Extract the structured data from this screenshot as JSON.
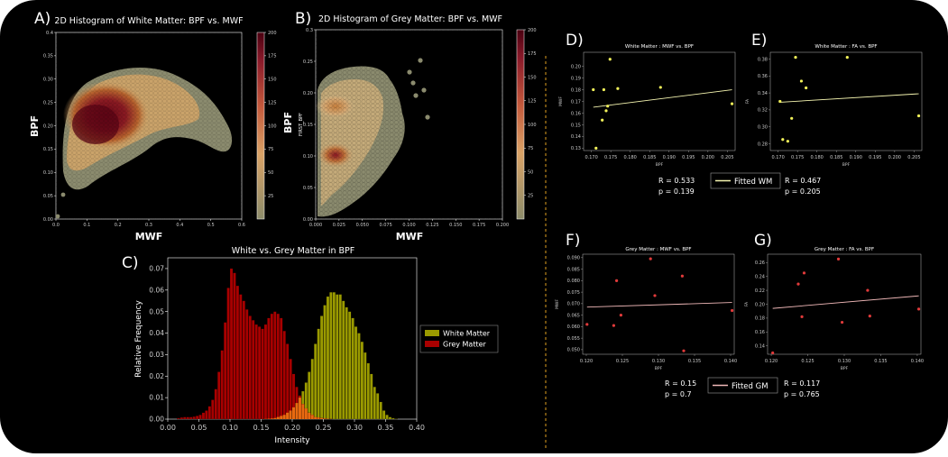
{
  "panels": {
    "A": {
      "letter": "A)",
      "title": "2D Histogram of White Matter: BPF vs. MWF",
      "xlabel": "MWF",
      "ylabel": "BPF",
      "xticks": [
        "0.0",
        "0.1",
        "0.2",
        "0.3",
        "0.4",
        "0.5",
        "0.6"
      ],
      "yticks": [
        "0.00",
        "0.05",
        "0.10",
        "0.15",
        "0.20",
        "0.25",
        "0.30",
        "0.35",
        "0.4"
      ],
      "cbar_ticks": [
        "25",
        "50",
        "75",
        "100",
        "125",
        "150",
        "175",
        "200"
      ]
    },
    "B": {
      "letter": "B)",
      "title": "2D Histogram of Grey Matter: BPF vs. MWF",
      "xlabel": "MWF",
      "ylabel": "BPF",
      "inner_ylabel": "FIRST_BPF",
      "xticks": [
        "0.000",
        "0.025",
        "0.050",
        "0.075",
        "0.100",
        "0.125",
        "0.150",
        "0.175",
        "0.200"
      ],
      "yticks": [
        "0.00",
        "0.05",
        "0.10",
        "0.15",
        "0.20",
        "0.25",
        "0.3"
      ],
      "cbar_ticks": [
        "25",
        "50",
        "75",
        "100",
        "125",
        "150",
        "175",
        "200"
      ]
    },
    "C": {
      "letter": "C)"
    },
    "D": {
      "letter": "D)"
    },
    "E": {
      "letter": "E)"
    },
    "F": {
      "letter": "F)"
    },
    "G": {
      "letter": "G)"
    }
  },
  "stats": {
    "D": {
      "r": "R = 0.533",
      "p": "p = 0.139"
    },
    "E": {
      "r": "R = 0.467",
      "p": "p = 0.205"
    },
    "F": {
      "r": "R = 0.15",
      "p": "p = 0.7"
    },
    "G": {
      "r": "R = 0.117",
      "p": "p = 0.765"
    }
  },
  "legends": {
    "wm_fit": "Fitted WM",
    "gm_fit": "Fitted GM"
  },
  "colors": {
    "background": "#000000",
    "white_matter": "#9a9a00",
    "grey_matter": "#a80000",
    "overlap": "#e86a10",
    "wm_points": "#f2f25a",
    "gm_points": "#e03a3a",
    "wm_fit_line": "#f5f5b0",
    "gm_fit_line": "#f0b8b8",
    "divider": "#e0a020"
  },
  "chart_data": [
    {
      "id": "A",
      "type": "heatmap",
      "title": "2D Histogram of White Matter: BPF vs. MWF",
      "xlabel": "MWF",
      "ylabel": "BPF",
      "xlim": [
        0,
        0.6
      ],
      "ylim": [
        0,
        0.4
      ],
      "xticks": [
        0,
        0.1,
        0.2,
        0.3,
        0.4,
        0.5,
        0.6
      ],
      "yticks": [
        0,
        0.05,
        0.1,
        0.15,
        0.2,
        0.25,
        0.3,
        0.35,
        0.4
      ],
      "colorbar": {
        "range": [
          0,
          200
        ],
        "ticks": [
          25,
          50,
          75,
          100,
          125,
          150,
          175,
          200
        ]
      },
      "density_peak": [
        0.12,
        0.2
      ],
      "outliers": [
        [
          0.01,
          0.0
        ],
        [
          0.03,
          0.05
        ]
      ]
    },
    {
      "id": "B",
      "type": "heatmap",
      "title": "2D Histogram of Grey Matter: BPF vs. MWF",
      "xlabel": "MWF",
      "ylabel": "BPF",
      "xlim": [
        0,
        0.2
      ],
      "ylim": [
        0,
        0.3
      ],
      "xticks": [
        0,
        0.025,
        0.05,
        0.075,
        0.1,
        0.125,
        0.15,
        0.175,
        0.2
      ],
      "yticks": [
        0,
        0.05,
        0.1,
        0.15,
        0.2,
        0.25,
        0.3
      ],
      "colorbar": {
        "range": [
          0,
          200
        ],
        "ticks": [
          25,
          50,
          75,
          100,
          125,
          150,
          175,
          200
        ]
      },
      "density_peaks": [
        [
          0.012,
          0.09
        ],
        [
          0.02,
          0.18
        ]
      ],
      "outliers": [
        [
          0.11,
          0.26
        ],
        [
          0.095,
          0.24
        ],
        [
          0.1,
          0.22
        ],
        [
          0.12,
          0.21
        ],
        [
          0.115,
          0.2
        ],
        [
          0.125,
          0.16
        ]
      ]
    },
    {
      "id": "C",
      "type": "bar",
      "title": "White vs. Grey Matter in BPF",
      "xlabel": "Intensity",
      "ylabel": "Relative Frequency",
      "xlim": [
        0,
        0.4
      ],
      "ylim": [
        0,
        0.075
      ],
      "xticks": [
        "0.00",
        "0.05",
        "0.10",
        "0.15",
        "0.20",
        "0.25",
        "0.30",
        "0.35",
        "0.40"
      ],
      "yticks": [
        "0.00",
        "0.01",
        "0.02",
        "0.03",
        "0.04",
        "0.05",
        "0.06",
        "0.07"
      ],
      "bin_start": 0.0,
      "bin_width": 0.005,
      "series": [
        {
          "name": "White Matter",
          "values": [
            0,
            0,
            0,
            0,
            0,
            0,
            0,
            0,
            0,
            0,
            0,
            0,
            0,
            0,
            0,
            0,
            0,
            0,
            0,
            0,
            0,
            0,
            0,
            0,
            0,
            0,
            0,
            0,
            0,
            0,
            0,
            0.0001,
            0.0002,
            0.0003,
            0.0005,
            0.001,
            0.0015,
            0.002,
            0.003,
            0.004,
            0.0055,
            0.0075,
            0.01,
            0.013,
            0.017,
            0.022,
            0.028,
            0.035,
            0.042,
            0.048,
            0.053,
            0.057,
            0.059,
            0.059,
            0.058,
            0.058,
            0.055,
            0.052,
            0.05,
            0.047,
            0.043,
            0.04,
            0.036,
            0.031,
            0.026,
            0.021,
            0.015,
            0.012,
            0.008,
            0.004,
            0.002,
            0.001,
            0.0005,
            0.0002,
            0,
            0,
            0,
            0,
            0,
            0
          ]
        },
        {
          "name": "Grey Matter",
          "values": [
            0,
            0,
            0,
            0.0005,
            0.0008,
            0.001,
            0.001,
            0.001,
            0.0012,
            0.0015,
            0.002,
            0.003,
            0.004,
            0.006,
            0.009,
            0.014,
            0.022,
            0.032,
            0.045,
            0.061,
            0.07,
            0.068,
            0.062,
            0.058,
            0.055,
            0.051,
            0.048,
            0.046,
            0.044,
            0.043,
            0.042,
            0.044,
            0.047,
            0.049,
            0.05,
            0.049,
            0.047,
            0.041,
            0.035,
            0.028,
            0.021,
            0.015,
            0.011,
            0.007,
            0.005,
            0.003,
            0.002,
            0.001,
            0.0008,
            0.0005,
            0.0003,
            0.0002,
            0.0001,
            0,
            0,
            0,
            0,
            0,
            0,
            0,
            0,
            0,
            0,
            0,
            0,
            0,
            0,
            0,
            0,
            0,
            0,
            0,
            0,
            0,
            0,
            0,
            0,
            0,
            0,
            0
          ]
        }
      ],
      "legend": [
        "White Matter",
        "Grey Matter"
      ],
      "legend_position": "right"
    },
    {
      "id": "D",
      "type": "scatter",
      "title": "White Matter : MWF vs. BPF",
      "xlabel": "BPF",
      "ylabel": "MWF",
      "xlim": [
        0.168,
        0.207
      ],
      "ylim": [
        0.128,
        0.212
      ],
      "xticks": [
        0.17,
        0.175,
        0.18,
        0.185,
        0.19,
        0.195,
        0.2,
        0.205
      ],
      "xticklabels": [
        "0.170",
        "0.175",
        "0.180",
        "0.185",
        "0.190",
        "0.195",
        "0.200",
        "0.205"
      ],
      "yticks": [
        0.13,
        0.14,
        0.15,
        0.16,
        0.17,
        0.18,
        0.19,
        0.2
      ],
      "yticklabels": [
        "0.13",
        "0.14",
        "0.15",
        "0.16",
        "0.17",
        "0.18",
        "0.19",
        "0.20"
      ],
      "points": [
        [
          0.1705,
          0.18
        ],
        [
          0.1712,
          0.13
        ],
        [
          0.1728,
          0.154
        ],
        [
          0.1732,
          0.18
        ],
        [
          0.1738,
          0.162
        ],
        [
          0.1742,
          0.166
        ],
        [
          0.1748,
          0.206
        ],
        [
          0.1768,
          0.181
        ],
        [
          0.1878,
          0.182
        ],
        [
          0.2062,
          0.168
        ]
      ],
      "fit": [
        [
          0.1705,
          0.165
        ],
        [
          0.2062,
          0.18
        ]
      ]
    },
    {
      "id": "E",
      "type": "scatter",
      "title": "White Matter : FA vs. BPF",
      "xlabel": "BPF",
      "ylabel": "FA",
      "xlim": [
        0.168,
        0.207
      ],
      "ylim": [
        0.272,
        0.388
      ],
      "xticks": [
        0.17,
        0.175,
        0.18,
        0.185,
        0.19,
        0.195,
        0.2,
        0.205
      ],
      "xticklabels": [
        "0.170",
        "0.175",
        "0.180",
        "0.185",
        "0.190",
        "0.195",
        "0.200",
        "0.205"
      ],
      "yticks": [
        0.28,
        0.3,
        0.32,
        0.34,
        0.36,
        0.38
      ],
      "yticklabels": [
        "0.28",
        "0.30",
        "0.32",
        "0.34",
        "0.36",
        "0.38"
      ],
      "points": [
        [
          0.1705,
          0.33
        ],
        [
          0.1712,
          0.285
        ],
        [
          0.1725,
          0.283
        ],
        [
          0.1735,
          0.31
        ],
        [
          0.1745,
          0.382
        ],
        [
          0.176,
          0.354
        ],
        [
          0.1772,
          0.346
        ],
        [
          0.1878,
          0.382
        ],
        [
          0.2062,
          0.313
        ]
      ],
      "fit": [
        [
          0.1705,
          0.329
        ],
        [
          0.2062,
          0.339
        ]
      ]
    },
    {
      "id": "F",
      "type": "scatter",
      "title": "Grey Matter : MWF vs. BPF",
      "xlabel": "BPF",
      "ylabel": "MWF",
      "xlim": [
        0.1195,
        0.1405
      ],
      "ylim": [
        0.048,
        0.0915
      ],
      "xticks": [
        0.12,
        0.125,
        0.13,
        0.135,
        0.14
      ],
      "xticklabels": [
        "0.120",
        "0.125",
        "0.130",
        "0.135",
        "0.140"
      ],
      "yticks": [
        0.05,
        0.055,
        0.06,
        0.065,
        0.07,
        0.075,
        0.08,
        0.085,
        0.09
      ],
      "yticklabels": [
        "0.050",
        "0.055",
        "0.060",
        "0.065",
        "0.070",
        "0.075",
        "0.080",
        "0.085",
        "0.090"
      ],
      "points": [
        [
          0.1201,
          0.061
        ],
        [
          0.1238,
          0.0605
        ],
        [
          0.1242,
          0.08
        ],
        [
          0.1248,
          0.065
        ],
        [
          0.1289,
          0.0895
        ],
        [
          0.1295,
          0.0735
        ],
        [
          0.1333,
          0.082
        ],
        [
          0.1335,
          0.0495
        ],
        [
          0.1402,
          0.067
        ]
      ],
      "fit": [
        [
          0.1201,
          0.0685
        ],
        [
          0.1402,
          0.0705
        ]
      ]
    },
    {
      "id": "G",
      "type": "scatter",
      "title": "Grey Matter : FA vs. BPF",
      "xlabel": "BPF",
      "ylabel": "FA",
      "xlim": [
        0.1195,
        0.1405
      ],
      "ylim": [
        0.128,
        0.272
      ],
      "xticks": [
        0.12,
        0.125,
        0.13,
        0.135,
        0.14
      ],
      "xticklabels": [
        "0.120",
        "0.125",
        "0.130",
        "0.135",
        "0.140"
      ],
      "yticks": [
        0.14,
        0.16,
        0.18,
        0.2,
        0.22,
        0.24,
        0.26
      ],
      "yticklabels": [
        "0.14",
        "0.16",
        "0.18",
        "0.20",
        "0.22",
        "0.24",
        "0.26"
      ],
      "points": [
        [
          0.1202,
          0.13
        ],
        [
          0.1237,
          0.229
        ],
        [
          0.1242,
          0.182
        ],
        [
          0.1245,
          0.245
        ],
        [
          0.1292,
          0.265
        ],
        [
          0.1297,
          0.174
        ],
        [
          0.1332,
          0.22
        ],
        [
          0.1335,
          0.183
        ],
        [
          0.1402,
          0.193
        ]
      ],
      "fit": [
        [
          0.1202,
          0.194
        ],
        [
          0.1402,
          0.212
        ]
      ]
    }
  ]
}
